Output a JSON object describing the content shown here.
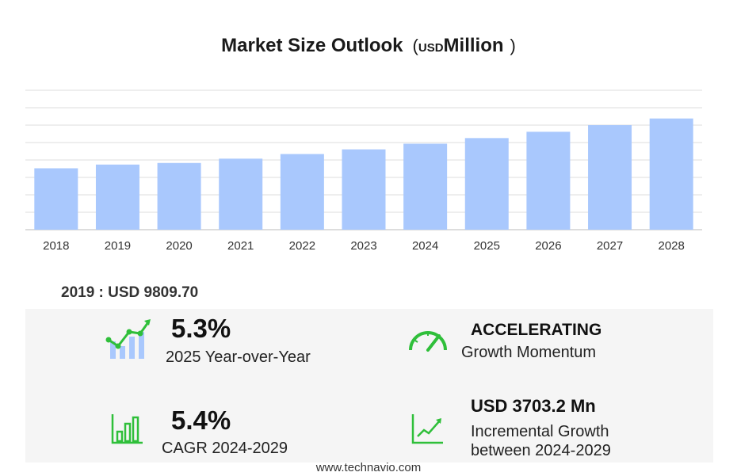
{
  "title": {
    "main": "Market Size Outlook",
    "open_paren": "(",
    "unit_small": "USD",
    "unit_big": "Million",
    "close_paren": ")"
  },
  "chart_data": {
    "type": "bar",
    "categories": [
      "2018",
      "2019",
      "2020",
      "2021",
      "2022",
      "2023",
      "2024",
      "2025",
      "2026",
      "2027",
      "2028"
    ],
    "values": [
      9250,
      9809.7,
      10050,
      10700,
      11400,
      12100,
      12950,
      13800,
      14750,
      15750,
      16750
    ],
    "ylim": [
      0,
      21000
    ],
    "grid": true,
    "bar_color": "#a9c8fd",
    "grid_color": "#dddddd"
  },
  "year_stat": "2019 : USD  9809.70",
  "stats": {
    "yoy": {
      "value": "5.3%",
      "label": "2025 Year-over-Year"
    },
    "momentum": {
      "value": "ACCELERATING",
      "label": "Growth Momentum"
    },
    "cagr": {
      "value": "5.4%",
      "label": "CAGR 2024-2029"
    },
    "incremental": {
      "value": "USD  3703.2 Mn",
      "label1": "Incremental Growth",
      "label2": "between 2024-2029"
    }
  },
  "icons": {
    "yoy": "growth-bars-icon",
    "momentum": "speedometer-icon",
    "cagr": "bar-chart-icon",
    "incremental": "line-trend-icon",
    "accent": "#2fbf3a"
  },
  "footer": "www.technavio.com"
}
